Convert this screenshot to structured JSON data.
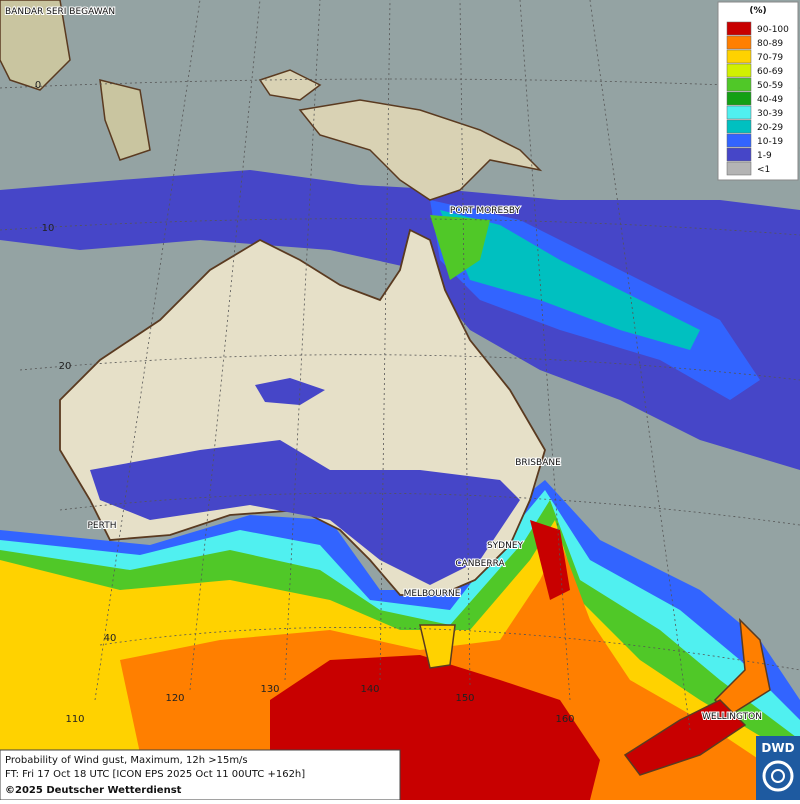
{
  "legend": {
    "title": "(%)",
    "items": [
      {
        "label": "90-100",
        "color": "#c80000"
      },
      {
        "label": "80-89",
        "color": "#ff7f00"
      },
      {
        "label": "70-79",
        "color": "#ffd200"
      },
      {
        "label": "60-69",
        "color": "#d2f000"
      },
      {
        "label": "50-59",
        "color": "#50c828"
      },
      {
        "label": "40-49",
        "color": "#14a014"
      },
      {
        "label": "30-39",
        "color": "#50f0f0"
      },
      {
        "label": "20-29",
        "color": "#00c0c0"
      },
      {
        "label": "10-19",
        "color": "#3264ff"
      },
      {
        "label": "1-9",
        "color": "#4646c8"
      },
      {
        "label": "<1",
        "color": "#b4b4b4"
      }
    ]
  },
  "cities": [
    "BANDAR SERI BEGAWAN",
    "PORT MORESBY",
    "BRISBANE",
    "PERTH",
    "SYDNEY",
    "CANBERRA",
    "MELBOURNE",
    "WELLINGTON"
  ],
  "latitude_labels": [
    "0",
    "10",
    "20",
    "40"
  ],
  "longitude_labels": [
    "110",
    "120",
    "130",
    "140",
    "150",
    "160"
  ],
  "footer": {
    "line1": "Probability of Wind gust, Maximum, 12h >15m/s",
    "line2": "FT: Fri 17 Oct 18 UTC [ICON EPS 2025 Oct 11 00UTC +162h]",
    "line3": "©2025 Deutscher Wetterdienst"
  },
  "logo": "DWD"
}
